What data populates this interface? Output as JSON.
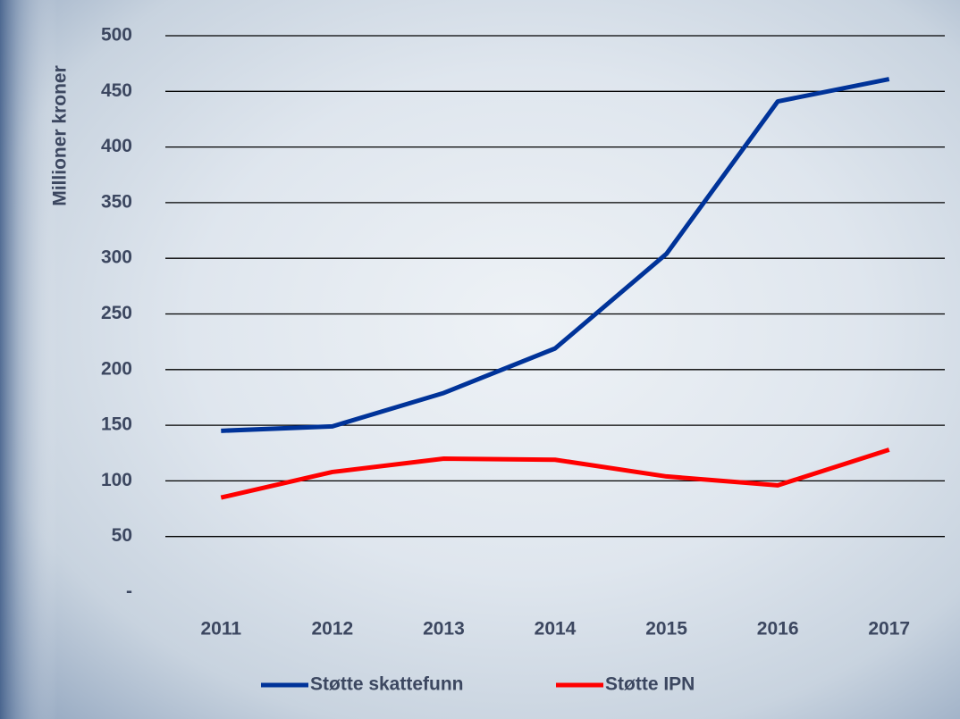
{
  "chart_data": {
    "type": "line",
    "y_label": "Millioner kroner",
    "categories": [
      "2011",
      "2012",
      "2013",
      "2014",
      "2015",
      "2016",
      "2017"
    ],
    "series": [
      {
        "name": "Støtte skattefunn",
        "color": "#003399",
        "values": [
          145,
          149,
          179,
          219,
          304,
          441,
          461
        ]
      },
      {
        "name": "Støtte IPN",
        "color": "#ff0000",
        "values": [
          85,
          108,
          120,
          119,
          104,
          96,
          128
        ]
      }
    ],
    "ylim": [
      0,
      500
    ],
    "yticks": [
      {
        "value": 0,
        "label": "-"
      },
      50,
      100,
      150,
      200,
      250,
      300,
      350,
      400,
      450,
      500
    ],
    "grid": true,
    "legend": "bottom"
  }
}
